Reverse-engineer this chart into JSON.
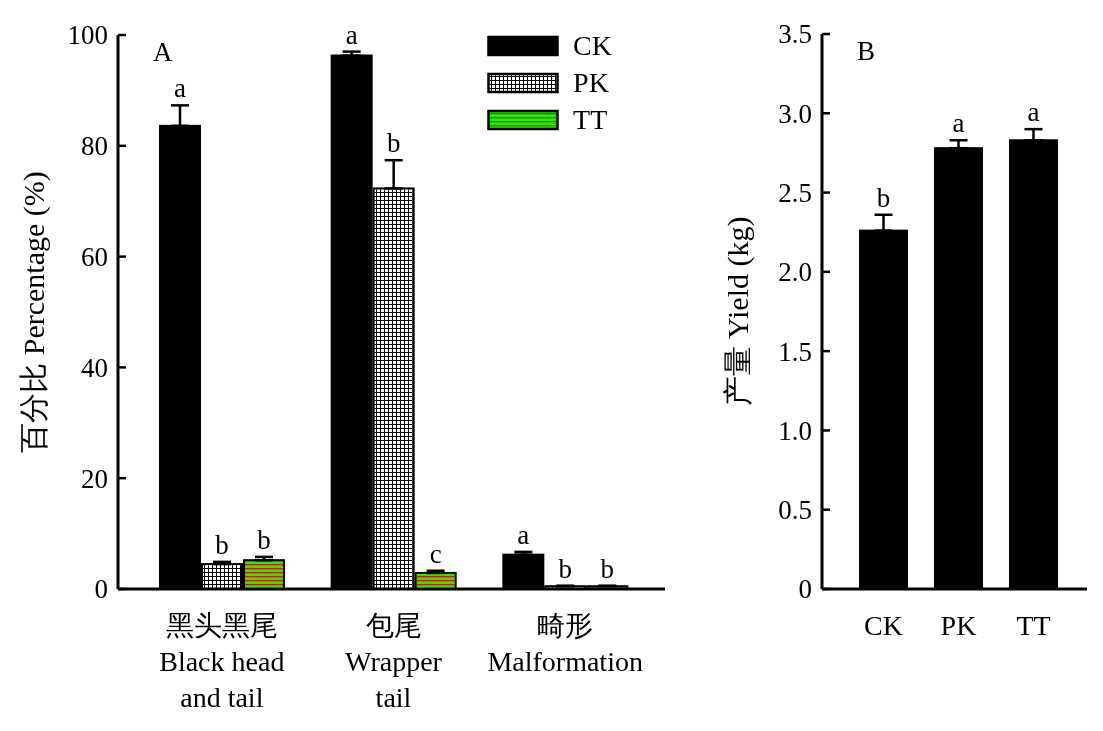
{
  "chart_data": [
    {
      "type": "bar",
      "categories": [
        "黑头黑尾\nBlack head\nand tail",
        "包尾\nWrapper\ntail",
        "畸形\nMalformation"
      ],
      "ylabel": "百分比 Percentage (%)",
      "annotations": [
        "A"
      ],
      "series": [
        {
          "name": "CK",
          "color": "#000000",
          "values": [
            83.6,
            96.3,
            6.2
          ],
          "errors": [
            [
              83.6,
              87.3
            ],
            [
              96.3,
              97.0
            ],
            [
              6.2,
              6.7
            ]
          ],
          "value_labels": [
            "a",
            "a",
            "a"
          ]
        },
        {
          "name": "PK",
          "color": "#ffffff",
          "values": [
            4.5,
            72.3,
            0.5
          ],
          "errors": [
            [
              4.5,
              4.9
            ],
            [
              72.3,
              77.4
            ],
            [
              0.5,
              0.6
            ]
          ],
          "value_labels": [
            "b",
            "b",
            "b"
          ]
        },
        {
          "name": "TT",
          "color": "#00ff00",
          "values": [
            5.2,
            2.9,
            0.5
          ],
          "errors": [
            [
              5.2,
              5.8
            ],
            [
              2.9,
              3.3
            ],
            [
              0.5,
              0.6
            ]
          ],
          "value_labels": [
            "b",
            "c",
            "b"
          ]
        }
      ],
      "ylim": [
        0,
        100
      ],
      "yticks": [
        0,
        20,
        40,
        60,
        80,
        100
      ],
      "legend": "top right"
    },
    {
      "type": "bar",
      "categories": [
        "CK",
        "PK",
        "TT"
      ],
      "ylabel": "产量 Yield (kg)",
      "annotations": [
        "B"
      ],
      "color": "#000000",
      "values": [
        2.26,
        2.78,
        2.83
      ],
      "errors": [
        [
          2.26,
          2.36
        ],
        [
          2.78,
          2.83
        ],
        [
          2.83,
          2.9
        ]
      ],
      "value_labels": [
        "b",
        "a",
        "a"
      ],
      "ylim": [
        0,
        3.5
      ],
      "yticks": [
        0,
        0.5,
        {
          "value": 1,
          "label": "1.0"
        },
        1.5,
        {
          "value": 2,
          "label": "2.0"
        },
        2.5,
        {
          "value": 3,
          "label": "3.0"
        },
        3.5
      ]
    }
  ]
}
